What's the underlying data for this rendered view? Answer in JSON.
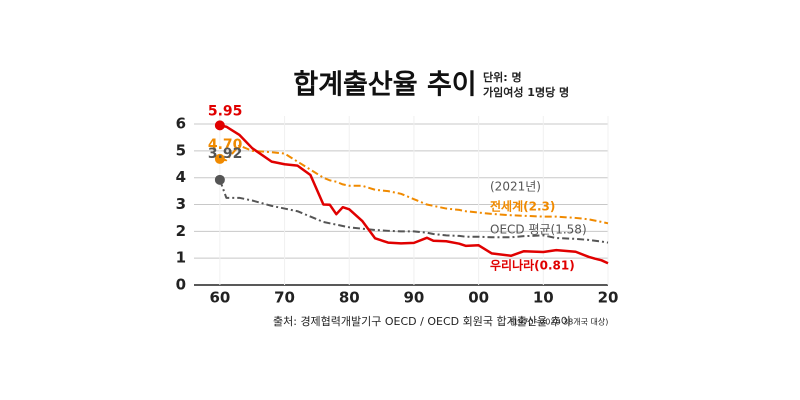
{
  "chart_data": {
    "type": "line",
    "title": "합계출산율 추이",
    "unit_note": [
      "단위: 명",
      "가임여성 1명당 명"
    ],
    "source": "출처: 경제협력개발기구 OECD / OECD 회원국 합계출산율 추이",
    "source_note": "(1970~2020 38개국 대상)",
    "annotation": "(2021년)",
    "x": [
      1960,
      1961,
      1963,
      1965,
      1968,
      1970,
      1972,
      1974,
      1976,
      1977,
      1978,
      1979,
      1980,
      1982,
      1984,
      1986,
      1988,
      1990,
      1992,
      1993,
      1995,
      1997,
      1998,
      2000,
      2002,
      2005,
      2007,
      2010,
      2012,
      2015,
      2017,
      2018,
      2019,
      2020
    ],
    "xlim": [
      1956,
      2020
    ],
    "xticks": [
      {
        "value": 1960,
        "label": "60"
      },
      {
        "value": 1970,
        "label": "70"
      },
      {
        "value": 1980,
        "label": "80"
      },
      {
        "value": 1990,
        "label": "90"
      },
      {
        "value": 2000,
        "label": "00"
      },
      {
        "value": 2010,
        "label": "10"
      },
      {
        "value": 2020,
        "label": "20"
      }
    ],
    "ylim": [
      0,
      6.3
    ],
    "yticks": [
      0,
      1,
      2,
      3,
      4,
      5,
      6
    ],
    "grid": true,
    "series": [
      {
        "name": "전세계(2.3)",
        "color": "#f08a00",
        "style": "dashdot",
        "values": [
          4.7,
          4.65,
          5.2,
          5.0,
          4.95,
          4.9,
          4.6,
          4.3,
          4.0,
          3.9,
          3.85,
          3.75,
          3.7,
          3.7,
          3.55,
          3.5,
          3.4,
          3.2,
          3.0,
          2.95,
          2.85,
          2.8,
          2.75,
          2.7,
          2.65,
          2.6,
          2.58,
          2.55,
          2.55,
          2.5,
          2.45,
          2.4,
          2.35,
          2.3
        ],
        "value_labels": [
          "4.70",
          null,
          null,
          null,
          null,
          null,
          null,
          null,
          null,
          null,
          null,
          null,
          null,
          null,
          null,
          null,
          null,
          null,
          null,
          null,
          null,
          null,
          null,
          null,
          null,
          null,
          null,
          null,
          null,
          null,
          null,
          null,
          null,
          null
        ]
      },
      {
        "name": "OECD 평균(1.58)",
        "color": "#555555",
        "style": "dashdot",
        "values": [
          3.92,
          3.25,
          3.25,
          3.15,
          2.95,
          2.85,
          2.75,
          2.55,
          2.35,
          2.3,
          2.25,
          2.2,
          2.15,
          2.1,
          2.05,
          2.02,
          2.0,
          2.0,
          1.95,
          1.9,
          1.85,
          1.83,
          1.8,
          1.8,
          1.78,
          1.78,
          1.82,
          1.85,
          1.75,
          1.72,
          1.68,
          1.65,
          1.62,
          1.58
        ],
        "value_labels": [
          "3.92",
          null,
          null,
          null,
          null,
          null,
          null,
          null,
          null,
          null,
          null,
          null,
          null,
          null,
          null,
          null,
          null,
          null,
          null,
          null,
          null,
          null,
          null,
          null,
          null,
          null,
          null,
          null,
          null,
          null,
          null,
          null,
          null,
          null
        ]
      },
      {
        "name": "우리나라(0.81)",
        "color": "#e00000",
        "style": "solid",
        "values": [
          5.95,
          5.9,
          5.6,
          5.1,
          4.6,
          4.5,
          4.45,
          4.1,
          3.0,
          2.99,
          2.64,
          2.9,
          2.82,
          2.39,
          1.74,
          1.58,
          1.55,
          1.57,
          1.76,
          1.65,
          1.63,
          1.54,
          1.46,
          1.48,
          1.18,
          1.09,
          1.26,
          1.23,
          1.3,
          1.24,
          1.05,
          0.98,
          0.92,
          0.81
        ],
        "value_labels": [
          "5.95",
          null,
          null,
          null,
          null,
          null,
          null,
          null,
          null,
          null,
          null,
          null,
          null,
          null,
          null,
          null,
          null,
          null,
          null,
          null,
          null,
          null,
          null,
          null,
          null,
          null,
          null,
          null,
          null,
          null,
          null,
          null,
          null,
          null
        ]
      }
    ]
  }
}
